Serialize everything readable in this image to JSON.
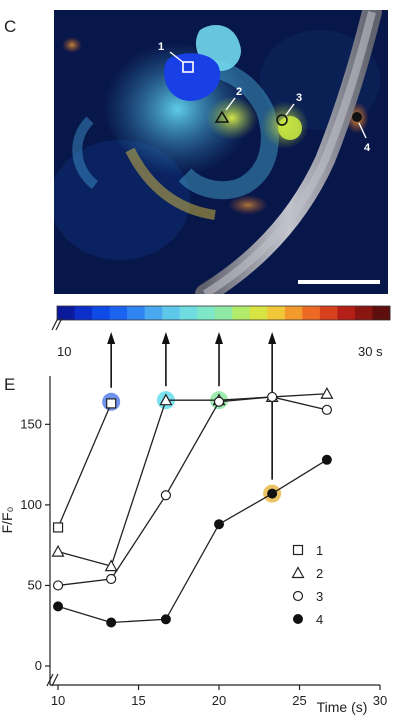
{
  "panel_c": {
    "label": "C",
    "roi_labels": [
      "1",
      "2",
      "3",
      "4"
    ],
    "colorbar": {
      "min_label": "10",
      "max_label": "30 s",
      "colors": [
        "#0a1a9a",
        "#0b2fc8",
        "#0d4ae8",
        "#1b63f0",
        "#2f86f2",
        "#4aa8f0",
        "#5ec8ea",
        "#6fdce0",
        "#7fe6c8",
        "#8ee8a6",
        "#b2ea6a",
        "#d8e442",
        "#f0c838",
        "#f29a2c",
        "#ec6a24",
        "#d8401e",
        "#b42018",
        "#8a1612",
        "#5e0e0c"
      ]
    }
  },
  "panel_e": {
    "label": "E"
  },
  "chart_data": {
    "type": "line",
    "xlabel": "Time (s)",
    "ylabel": "F/F₀",
    "xlim": [
      9.5,
      30
    ],
    "ylim": [
      0,
      180
    ],
    "xticks": [
      "10",
      "15",
      "20",
      "25",
      "30"
    ],
    "yticks": [
      "0",
      "50",
      "100",
      "150"
    ],
    "legend_position": "right",
    "series": [
      {
        "name": "1",
        "marker": "square",
        "x": [
          10,
          13.3
        ],
        "y": [
          86,
          163
        ]
      },
      {
        "name": "2",
        "marker": "triangle",
        "x": [
          10,
          13.3,
          16.7,
          20,
          23.3,
          26.7
        ],
        "y": [
          71,
          62,
          165,
          165,
          167,
          169
        ]
      },
      {
        "name": "3",
        "marker": "circle-open",
        "x": [
          10,
          13.3,
          16.7,
          20,
          23.3,
          26.7
        ],
        "y": [
          50,
          54,
          106,
          164,
          167,
          159
        ]
      },
      {
        "name": "4",
        "marker": "circle-filled",
        "x": [
          10,
          13.3,
          16.7,
          20,
          23.3,
          26.7
        ],
        "y": [
          37,
          27,
          29,
          88,
          107,
          128
        ]
      }
    ],
    "highlights": [
      {
        "x": 13.3,
        "y": 164,
        "color": "#3d6ee8"
      },
      {
        "x": 16.7,
        "y": 165,
        "color": "#4fd8ea"
      },
      {
        "x": 20,
        "y": 165,
        "color": "#7fe69a"
      },
      {
        "x": 23.3,
        "y": 107,
        "color": "#e6b030"
      }
    ]
  }
}
